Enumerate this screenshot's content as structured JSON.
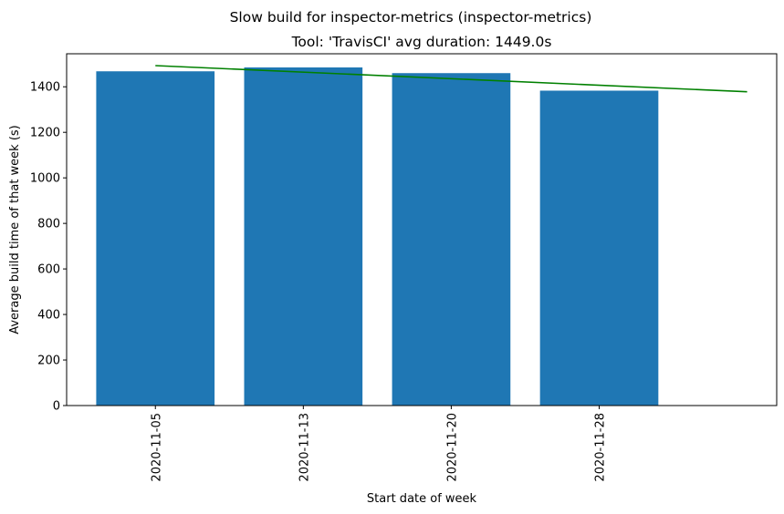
{
  "chart_data": {
    "type": "bar",
    "suptitle": "Slow build for inspector-metrics (inspector-metrics)",
    "title": "Tool: 'TravisCI' avg duration: 1449.0s",
    "xlabel": "Start date of week",
    "ylabel": "Average build time of that week (s)",
    "categories": [
      "2020-11-05",
      "2020-11-13",
      "2020-11-20",
      "2020-11-28"
    ],
    "values": [
      1468,
      1485,
      1460,
      1383
    ],
    "bar_color": "#1f77b4",
    "trend_color": "#008000",
    "trend": {
      "x": [
        0,
        4
      ],
      "y": [
        1493,
        1378
      ]
    },
    "xlim": [
      -0.6,
      4.2
    ],
    "ylim": [
      0,
      1545
    ],
    "yticks": [
      0,
      200,
      400,
      600,
      800,
      1000,
      1200,
      1400
    ],
    "ytick_labels": [
      "0",
      "200",
      "400",
      "600",
      "800",
      "1000",
      "1200",
      "1400"
    ],
    "grid": false,
    "legend": "none"
  }
}
